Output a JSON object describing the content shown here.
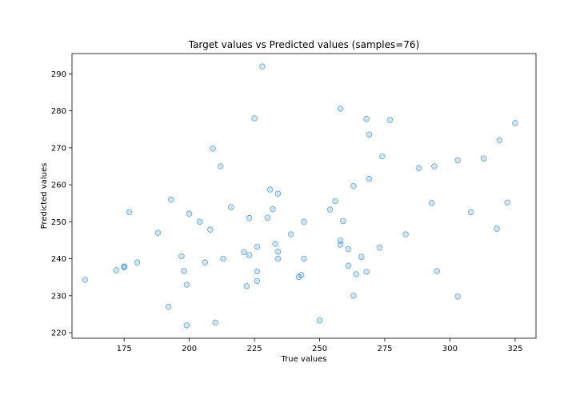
{
  "chart_data": {
    "type": "scatter",
    "title": "Target values vs Predicted values (samples=76)",
    "xlabel": "True values",
    "ylabel": "Predicted values",
    "xlim": [
      155,
      333
    ],
    "ylim": [
      218.5,
      295.5
    ],
    "xticks": [
      175,
      200,
      225,
      250,
      275,
      300,
      325
    ],
    "yticks": [
      220,
      230,
      240,
      250,
      260,
      270,
      280,
      290
    ],
    "grid": false,
    "color": "#1f77b4",
    "points": [
      [
        160,
        234.3
      ],
      [
        172,
        236.9
      ],
      [
        175,
        237.7
      ],
      [
        175,
        237.9
      ],
      [
        177,
        252.6
      ],
      [
        180,
        239.0
      ],
      [
        188,
        247.0
      ],
      [
        192,
        227.0
      ],
      [
        193,
        256.0
      ],
      [
        197,
        240.7
      ],
      [
        198,
        236.7
      ],
      [
        199,
        233.0
      ],
      [
        199,
        222.0
      ],
      [
        200,
        252.2
      ],
      [
        204,
        250.0
      ],
      [
        206,
        239.0
      ],
      [
        208,
        247.9
      ],
      [
        209,
        269.8
      ],
      [
        210,
        222.7
      ],
      [
        212,
        265.0
      ],
      [
        213,
        240.0
      ],
      [
        216,
        254.0
      ],
      [
        221,
        241.8
      ],
      [
        222,
        232.6
      ],
      [
        223,
        251.0
      ],
      [
        223,
        241.0
      ],
      [
        225,
        278.0
      ],
      [
        226,
        243.2
      ],
      [
        226,
        236.6
      ],
      [
        226,
        234.0
      ],
      [
        228,
        292.0
      ],
      [
        230,
        251.1
      ],
      [
        231,
        258.7
      ],
      [
        232,
        253.4
      ],
      [
        233,
        244.0
      ],
      [
        234,
        257.6
      ],
      [
        234,
        241.9
      ],
      [
        234,
        240.0
      ],
      [
        239,
        246.6
      ],
      [
        242,
        235.1
      ],
      [
        243,
        235.6
      ],
      [
        244,
        250.0
      ],
      [
        244,
        240.0
      ],
      [
        250,
        223.3
      ],
      [
        254,
        253.3
      ],
      [
        256,
        255.6
      ],
      [
        258,
        280.6
      ],
      [
        258,
        244.9
      ],
      [
        258,
        243.8
      ],
      [
        259,
        250.2
      ],
      [
        261,
        242.6
      ],
      [
        261,
        238.1
      ],
      [
        263,
        259.7
      ],
      [
        263,
        230.0
      ],
      [
        264,
        235.8
      ],
      [
        266,
        240.5
      ],
      [
        268,
        277.8
      ],
      [
        268,
        236.5
      ],
      [
        269,
        273.6
      ],
      [
        269,
        261.6
      ],
      [
        273,
        243.0
      ],
      [
        274,
        267.7
      ],
      [
        277,
        277.5
      ],
      [
        283,
        246.6
      ],
      [
        288,
        264.5
      ],
      [
        293,
        255.1
      ],
      [
        294,
        265.0
      ],
      [
        295,
        236.7
      ],
      [
        303,
        266.6
      ],
      [
        303,
        229.8
      ],
      [
        308,
        252.6
      ],
      [
        313,
        267.1
      ],
      [
        318,
        248.1
      ],
      [
        319,
        272.0
      ],
      [
        322,
        255.2
      ],
      [
        325,
        276.7
      ]
    ]
  }
}
